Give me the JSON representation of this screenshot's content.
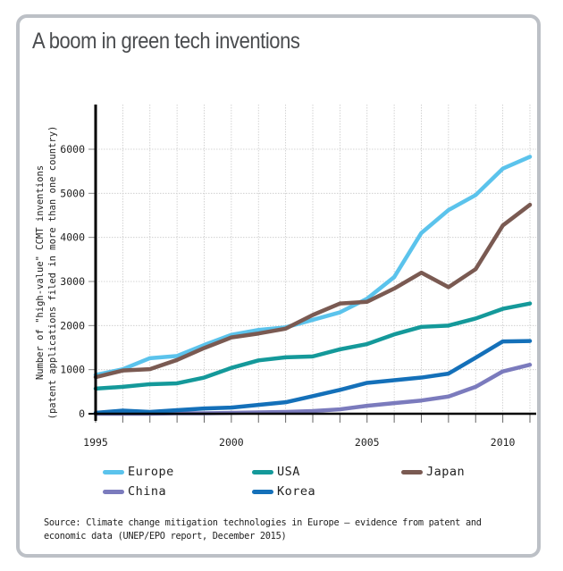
{
  "card": {
    "title": "A boom in green tech inventions"
  },
  "chart_data": {
    "type": "line",
    "title": "A boom in green tech inventions",
    "xlabel": "",
    "ylabel": "Number of \"high-value\" CCMT inventions\n(patent applications filed in more than one country)",
    "ylabel_lines": [
      "Number of \"high-value\" CCMT inventions",
      "(patent applications filed in more than one country)"
    ],
    "x": [
      1995,
      1996,
      1997,
      1998,
      1999,
      2000,
      2001,
      2002,
      2003,
      2004,
      2005,
      2006,
      2007,
      2008,
      2009,
      2010,
      2011
    ],
    "xlim": [
      1995,
      2011
    ],
    "ylim": [
      0,
      6000
    ],
    "x_ticks": [
      1995,
      2000,
      2005,
      2010
    ],
    "y_ticks": [
      0,
      1000,
      2000,
      3000,
      4000,
      5000,
      6000
    ],
    "grid": true,
    "legend_position": "bottom",
    "series": [
      {
        "name": "Europe",
        "color": "#5bc3ec",
        "values": [
          880,
          1010,
          1260,
          1310,
          1560,
          1790,
          1900,
          1960,
          2130,
          2300,
          2610,
          3100,
          4100,
          4620,
          4960,
          5560,
          5830
        ]
      },
      {
        "name": "USA",
        "color": "#14999a",
        "values": [
          570,
          610,
          670,
          690,
          820,
          1040,
          1210,
          1280,
          1300,
          1460,
          1580,
          1800,
          1970,
          2000,
          2160,
          2380,
          2500
        ]
      },
      {
        "name": "Japan",
        "color": "#7a5a52",
        "values": [
          830,
          980,
          1010,
          1220,
          1490,
          1730,
          1820,
          1930,
          2240,
          2500,
          2540,
          2840,
          3200,
          2870,
          3280,
          4270,
          4740
        ]
      },
      {
        "name": "China",
        "color": "#7b7bbd",
        "values": [
          0,
          0,
          0,
          10,
          10,
          20,
          30,
          40,
          60,
          100,
          180,
          240,
          300,
          390,
          610,
          960,
          1110
        ]
      },
      {
        "name": "Korea",
        "color": "#1470b9",
        "values": [
          20,
          70,
          40,
          80,
          120,
          140,
          200,
          260,
          400,
          540,
          700,
          760,
          820,
          910,
          1270,
          1640,
          1650
        ]
      }
    ]
  },
  "legend": [
    {
      "label": "Europe",
      "color": "#5bc3ec"
    },
    {
      "label": "USA",
      "color": "#14999a"
    },
    {
      "label": "Japan",
      "color": "#7a5a52"
    },
    {
      "label": "China",
      "color": "#7b7bbd"
    },
    {
      "label": "Korea",
      "color": "#1470b9"
    }
  ],
  "source": "Source: Climate change mitigation technologies in Europe – evidence from patent and economic data (UNEP/EPO report, December 2015)"
}
